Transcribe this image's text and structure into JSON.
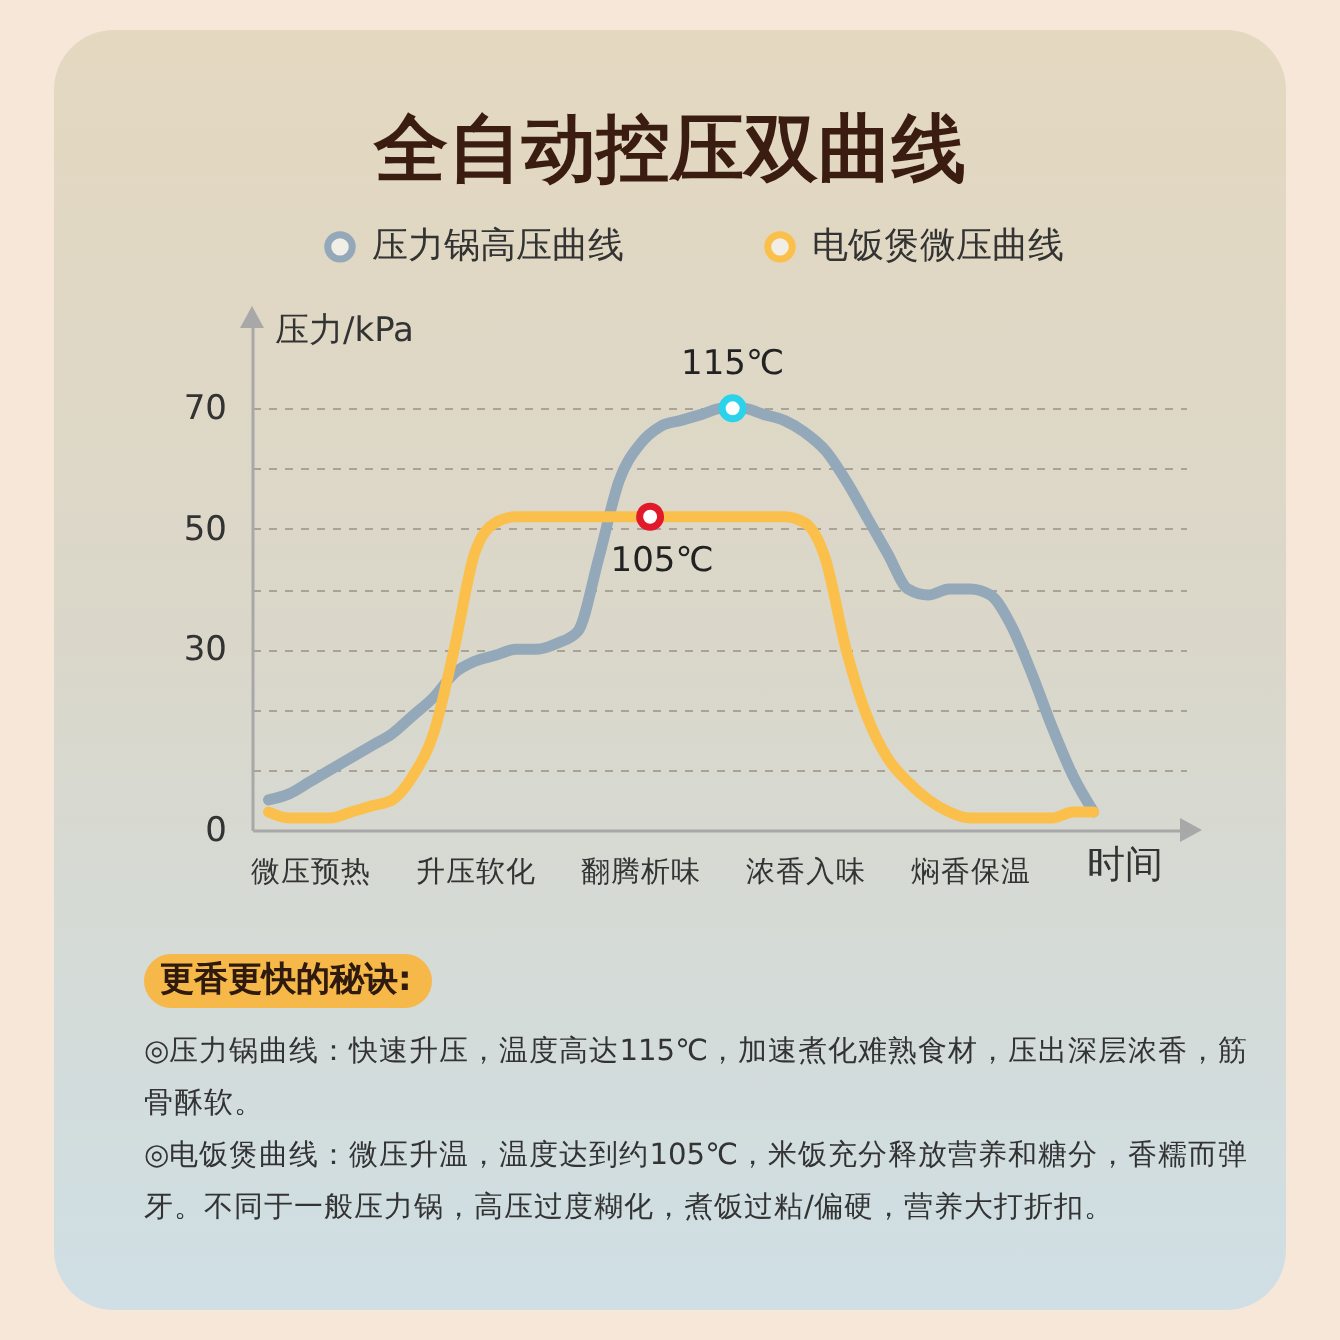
{
  "chart_data": {
    "type": "line",
    "title": "全自动控压双曲线",
    "ylabel": "压力/kPa",
    "xlabel": "时间",
    "categories": [
      null,
      null,
      "微压预热",
      null,
      null,
      null,
      null,
      null,
      null,
      null,
      "升压软化",
      null,
      null,
      null,
      null,
      null,
      null,
      null,
      "翻腾析味",
      null,
      null,
      null,
      null,
      null,
      null,
      null,
      "浓香入味",
      null,
      null,
      null,
      null,
      null,
      null,
      null,
      "焖香保温",
      null,
      null,
      null,
      null,
      null,
      null
    ],
    "ylim": [
      0,
      84
    ],
    "yticks": [
      0,
      {
        "value": 10,
        "label": null
      },
      {
        "value": 20,
        "label": null
      },
      30,
      {
        "value": 40,
        "label": null
      },
      50,
      {
        "value": 60,
        "label": null
      },
      70
    ],
    "grid": "y",
    "legend": "top",
    "line_style": "solid",
    "series": [
      {
        "name": "压力锅高压曲线",
        "color": "#93a8b9",
        "values": [
          5,
          6,
          8,
          10,
          12,
          14,
          16,
          19,
          22,
          26,
          28,
          29,
          30,
          30,
          31,
          33,
          45,
          58,
          64,
          67,
          68,
          69,
          70,
          70,
          69,
          68,
          66,
          63,
          58,
          52,
          46,
          40,
          39,
          40,
          40,
          39,
          34,
          26,
          17,
          9,
          3
        ]
      },
      {
        "name": "电饭煲微压曲线",
        "color": "#fbc04c",
        "values": [
          3,
          2,
          2,
          2,
          3,
          4,
          5,
          9,
          16,
          30,
          46,
          51,
          52,
          52,
          52,
          52,
          52,
          52,
          52,
          52,
          52,
          52,
          52,
          52,
          52,
          52,
          51,
          45,
          30,
          19,
          12,
          8,
          5,
          3,
          2,
          2,
          2,
          2,
          2,
          3,
          3
        ]
      }
    ],
    "annotations": [
      {
        "text": "115℃",
        "y": 70
      },
      {
        "text": "105℃",
        "y": 52
      },
      "更香更快的秘诀:",
      "◎压力锅曲线：快速升压，温度高达115℃，加速煮化难熟食材，压出深层浓香，筋骨酥软。",
      "◎电饭煲曲线：微压升温，温度达到约105℃，米饭充分释放营养和糖分，香糯而弹牙。不同于一般压力锅，高压过度糊化，煮饭过粘/偏硬，营养大打折扣。"
    ]
  }
}
